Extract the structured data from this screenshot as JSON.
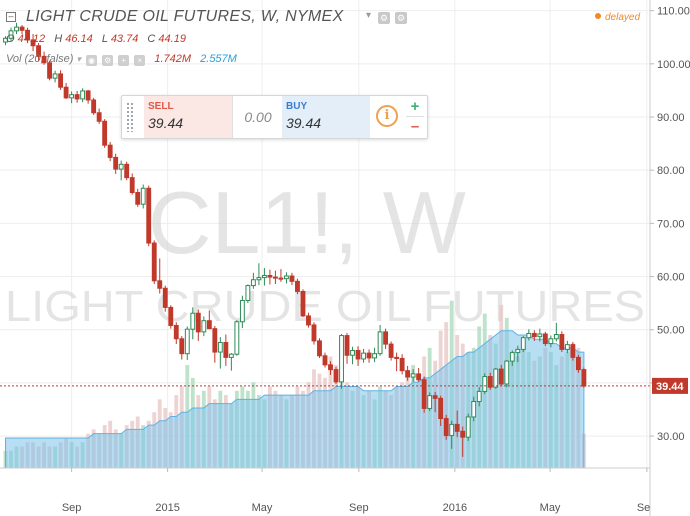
{
  "header": {
    "title": "LIGHT CRUDE OIL FUTURES, W, NYMEX",
    "delayed_label": "delayed",
    "ohlc": {
      "o_label": "O",
      "o_value": "44.12",
      "h_label": "H",
      "h_value": "46.14",
      "l_label": "L",
      "l_value": "43.74",
      "c_label": "C",
      "c_value": "44.19"
    },
    "volume": {
      "label": "Vol (20, false)",
      "value1": "1.742M",
      "value2": "2.557M"
    }
  },
  "trade_panel": {
    "sell_label": "SELL",
    "sell_value": "39.44",
    "spread_value": "0.00",
    "buy_label": "BUY",
    "buy_value": "39.44",
    "info_icon": "info-icon",
    "plus_icon": "plus-icon",
    "minus_icon": "minus-icon"
  },
  "watermark": {
    "symbol": "CL1!, W",
    "name": "LIGHT CRUDE OIL FUTURES"
  },
  "colors": {
    "up": "#2e8b57",
    "up_fill": "#ffffff",
    "down": "#c0392b",
    "down_fill": "#c0392b",
    "volume_up": "#a8d8b9",
    "volume_down": "#e8c4c4",
    "volume_ma": "#7cc3ea",
    "price_line": "#c0392b"
  },
  "chart_data": {
    "type": "candlestick",
    "title": "LIGHT CRUDE OIL FUTURES, W, NYMEX",
    "ylim": [
      24,
      112
    ],
    "y_ticks": [
      30,
      40,
      50,
      60,
      70,
      80,
      90,
      100,
      110
    ],
    "y_tick_labels": [
      "30.00",
      "40.00",
      "50.00",
      "60.00",
      "70.00",
      "80.00",
      "90.00",
      "100.00",
      "110.00"
    ],
    "x_tick_labels": [
      "Sep",
      "2015",
      "May",
      "Sep",
      "2016",
      "May",
      "Se"
    ],
    "x_tick_dates": [
      "2014-09-01",
      "2015-01-01",
      "2015-05-01",
      "2015-09-01",
      "2016-01-01",
      "2016-05-01",
      "2016-09-01"
    ],
    "x_range": [
      "2014-06-02",
      "2016-09-05"
    ],
    "first_week": "2014-06-09",
    "last_price": "39.44",
    "last_value": 39.44,
    "candles": [
      [
        104.1,
        105.2,
        103.5,
        104.8
      ],
      [
        104.8,
        106.8,
        104.2,
        106.2
      ],
      [
        106.2,
        107.7,
        105.6,
        106.9
      ],
      [
        106.9,
        107.3,
        105.6,
        106.3
      ],
      [
        106.3,
        106.8,
        103.9,
        104.5
      ],
      [
        104.5,
        105.6,
        102.4,
        103.4
      ],
      [
        103.4,
        103.9,
        100.5,
        101.4
      ],
      [
        101.4,
        102.3,
        99.8,
        100.2
      ],
      [
        100.2,
        100.6,
        96.9,
        97.3
      ],
      [
        97.3,
        98.7,
        96.5,
        98.1
      ],
      [
        98.1,
        98.8,
        95.1,
        95.6
      ],
      [
        95.6,
        96.4,
        93.4,
        93.6
      ],
      [
        93.6,
        94.8,
        92.6,
        94.2
      ],
      [
        94.2,
        94.9,
        92.7,
        93.4
      ],
      [
        93.4,
        95.4,
        92.8,
        94.9
      ],
      [
        94.9,
        95.1,
        92.5,
        93.2
      ],
      [
        93.2,
        93.6,
        90.4,
        90.8
      ],
      [
        90.8,
        91.6,
        88.7,
        89.2
      ],
      [
        89.2,
        89.6,
        84.2,
        84.7
      ],
      [
        84.7,
        85.3,
        81.7,
        82.4
      ],
      [
        82.4,
        83.1,
        79.3,
        80.2
      ],
      [
        80.2,
        81.8,
        78.1,
        81.1
      ],
      [
        81.1,
        81.6,
        78.1,
        78.6
      ],
      [
        78.6,
        79.4,
        75.4,
        75.8
      ],
      [
        75.8,
        76.5,
        73.1,
        73.6
      ],
      [
        73.6,
        77.3,
        72.8,
        76.6
      ],
      [
        76.6,
        77.1,
        65.7,
        66.3
      ],
      [
        66.3,
        66.8,
        58.6,
        59.2
      ],
      [
        59.2,
        63.4,
        56.8,
        57.8
      ],
      [
        57.8,
        58.3,
        53.4,
        54.2
      ],
      [
        54.2,
        54.6,
        50.2,
        50.8
      ],
      [
        50.8,
        51.4,
        47.3,
        48.3
      ],
      [
        48.3,
        48.8,
        44.4,
        45.5
      ],
      [
        45.5,
        50.6,
        44.3,
        50.1
      ],
      [
        50.1,
        54.2,
        48.2,
        53.1
      ],
      [
        53.1,
        53.8,
        47.9,
        49.6
      ],
      [
        49.6,
        52.5,
        48.8,
        51.7
      ],
      [
        51.7,
        53.6,
        50.1,
        50.2
      ],
      [
        50.2,
        50.7,
        43.8,
        45.8
      ],
      [
        45.8,
        48.6,
        42.7,
        47.6
      ],
      [
        47.6,
        49.1,
        43.2,
        44.8
      ],
      [
        44.8,
        45.6,
        42.3,
        45.4
      ],
      [
        45.4,
        51.8,
        45.1,
        51.5
      ],
      [
        51.5,
        56.4,
        50.3,
        55.5
      ],
      [
        55.5,
        58.5,
        55.0,
        58.3
      ],
      [
        58.3,
        60.7,
        57.7,
        59.4
      ],
      [
        59.4,
        62.5,
        58.4,
        59.8
      ],
      [
        59.8,
        61.6,
        58.3,
        60.2
      ],
      [
        60.2,
        61.3,
        58.5,
        59.9
      ],
      [
        59.9,
        61.1,
        58.6,
        59.7
      ],
      [
        59.7,
        61.4,
        59.0,
        59.6
      ],
      [
        59.6,
        60.8,
        58.7,
        60.1
      ],
      [
        60.1,
        60.7,
        58.4,
        59.1
      ],
      [
        59.1,
        59.6,
        56.7,
        57.2
      ],
      [
        57.2,
        57.6,
        52.4,
        52.6
      ],
      [
        52.6,
        53.2,
        50.4,
        50.9
      ],
      [
        50.9,
        51.4,
        47.2,
        47.9
      ],
      [
        47.9,
        48.4,
        44.7,
        45.1
      ],
      [
        45.1,
        45.7,
        42.9,
        43.4
      ],
      [
        43.4,
        44.1,
        41.5,
        42.5
      ],
      [
        42.5,
        43.0,
        39.8,
        40.2
      ],
      [
        40.2,
        49.2,
        38.9,
        48.9
      ],
      [
        48.9,
        49.4,
        43.6,
        45.2
      ],
      [
        45.2,
        46.8,
        43.5,
        46.1
      ],
      [
        46.1,
        46.9,
        43.2,
        44.5
      ],
      [
        44.5,
        46.4,
        43.8,
        45.6
      ],
      [
        45.6,
        46.3,
        43.8,
        44.7
      ],
      [
        44.7,
        46.6,
        43.9,
        45.5
      ],
      [
        45.5,
        50.9,
        45.1,
        49.6
      ],
      [
        49.6,
        50.2,
        46.4,
        47.3
      ],
      [
        47.3,
        47.8,
        44.2,
        44.8
      ],
      [
        44.8,
        45.7,
        42.2,
        44.6
      ],
      [
        44.6,
        45.4,
        41.6,
        42.3
      ],
      [
        42.3,
        43.2,
        40.4,
        41.1
      ],
      [
        41.1,
        42.6,
        40.2,
        41.7
      ],
      [
        41.7,
        42.8,
        40.2,
        40.6
      ],
      [
        40.6,
        41.2,
        34.4,
        35.2
      ],
      [
        35.2,
        38.2,
        34.7,
        37.6
      ],
      [
        37.6,
        38.3,
        34.5,
        37.1
      ],
      [
        37.1,
        37.6,
        31.9,
        33.3
      ],
      [
        33.3,
        34.0,
        29.3,
        30.1
      ],
      [
        30.1,
        32.9,
        27.6,
        32.2
      ],
      [
        32.2,
        34.8,
        29.8,
        30.9
      ],
      [
        30.9,
        31.8,
        26.1,
        29.8
      ],
      [
        29.8,
        34.2,
        29.1,
        33.6
      ],
      [
        33.6,
        37.4,
        32.8,
        36.5
      ],
      [
        36.5,
        39.2,
        35.6,
        38.4
      ],
      [
        38.4,
        41.8,
        37.9,
        41.2
      ],
      [
        41.2,
        41.9,
        38.7,
        39.2
      ],
      [
        39.2,
        42.8,
        38.9,
        42.6
      ],
      [
        42.6,
        43.4,
        39.4,
        39.8
      ],
      [
        39.8,
        44.3,
        39.2,
        44.1
      ],
      [
        44.1,
        46.1,
        43.2,
        45.7
      ],
      [
        45.7,
        47.0,
        43.9,
        46.3
      ],
      [
        46.3,
        48.8,
        45.8,
        48.5
      ],
      [
        48.5,
        50.1,
        48.0,
        49.3
      ],
      [
        49.3,
        49.9,
        47.9,
        48.7
      ],
      [
        48.7,
        50.2,
        47.8,
        49.2
      ],
      [
        49.2,
        49.6,
        46.9,
        47.4
      ],
      [
        47.4,
        48.9,
        46.7,
        48.3
      ],
      [
        48.3,
        51.3,
        47.8,
        49.1
      ],
      [
        49.1,
        49.7,
        45.8,
        46.3
      ],
      [
        46.3,
        47.9,
        45.6,
        47.2
      ],
      [
        47.2,
        47.7,
        44.2,
        44.8
      ],
      [
        44.8,
        45.3,
        41.9,
        42.5
      ],
      [
        42.5,
        42.9,
        39.1,
        39.4
      ]
    ],
    "volume_million": [
      0.4,
      0.4,
      0.5,
      0.5,
      0.6,
      0.6,
      0.5,
      0.6,
      0.5,
      0.5,
      0.6,
      0.7,
      0.6,
      0.5,
      0.6,
      0.8,
      0.9,
      0.8,
      1.0,
      1.1,
      0.9,
      0.8,
      1.0,
      1.1,
      1.2,
      1.0,
      1.1,
      1.3,
      1.6,
      1.4,
      1.3,
      1.7,
      1.9,
      2.4,
      2.1,
      1.7,
      1.8,
      1.9,
      1.6,
      1.8,
      1.7,
      1.5,
      1.8,
      1.9,
      1.8,
      2.0,
      1.7,
      1.6,
      1.9,
      1.8,
      1.7,
      1.6,
      1.7,
      1.9,
      1.8,
      2.0,
      2.3,
      2.2,
      2.1,
      2.6,
      2.4,
      2.9,
      2.0,
      1.8,
      1.9,
      1.7,
      1.8,
      1.6,
      1.9,
      1.8,
      1.7,
      1.9,
      2.0,
      2.1,
      2.4,
      2.2,
      2.6,
      2.8,
      2.5,
      3.2,
      3.4,
      3.9,
      3.1,
      2.9,
      2.7,
      2.8,
      3.3,
      3.6,
      3.1,
      2.9,
      3.8,
      3.5,
      2.7,
      2.6,
      3.0,
      2.7,
      2.5,
      2.6,
      2.8,
      2.7,
      2.4,
      2.6,
      2.7,
      2.9,
      2.8,
      0.8
    ],
    "volume_ma_million": [
      0.7,
      0.7,
      0.7,
      0.7,
      0.7,
      0.7,
      0.7,
      0.7,
      0.7,
      0.7,
      0.7,
      0.7,
      0.7,
      0.7,
      0.7,
      0.7,
      0.8,
      0.8,
      0.8,
      0.8,
      0.8,
      0.8,
      0.9,
      0.9,
      0.9,
      0.9,
      1.0,
      1.0,
      1.1,
      1.1,
      1.2,
      1.2,
      1.3,
      1.3,
      1.4,
      1.4,
      1.4,
      1.5,
      1.5,
      1.5,
      1.5,
      1.5,
      1.6,
      1.6,
      1.6,
      1.6,
      1.6,
      1.7,
      1.7,
      1.7,
      1.7,
      1.7,
      1.7,
      1.7,
      1.7,
      1.7,
      1.8,
      1.8,
      1.8,
      1.8,
      1.9,
      1.9,
      1.9,
      1.9,
      1.9,
      1.8,
      1.8,
      1.8,
      1.8,
      1.8,
      1.8,
      1.9,
      1.9,
      1.9,
      2.0,
      2.0,
      2.1,
      2.1,
      2.2,
      2.3,
      2.4,
      2.5,
      2.6,
      2.6,
      2.7,
      2.7,
      2.8,
      2.9,
      3.0,
      3.1,
      3.2,
      3.2,
      3.2,
      3.1,
      3.1,
      3.1,
      3.0,
      3.0,
      3.0,
      2.9,
      2.9,
      2.8,
      2.8,
      2.8,
      2.7,
      2.7
    ],
    "volume_max_million": 6.0
  }
}
